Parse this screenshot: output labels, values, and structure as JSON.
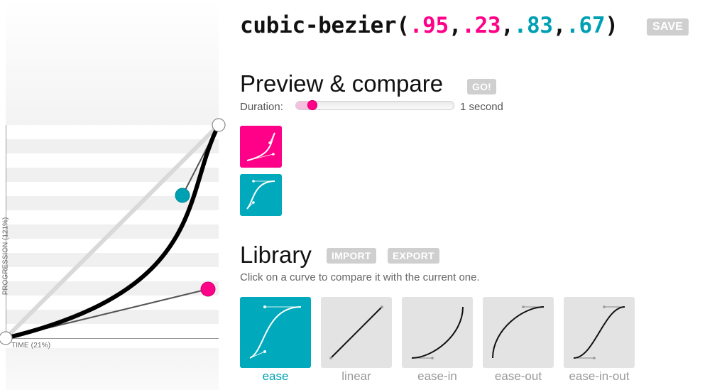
{
  "editor": {
    "x_axis_label": "TIME (21%)",
    "y_axis_label": "PROGRESSION (121%)",
    "curve_color": "#000000",
    "p1_color": "#ff0088",
    "p2_color": "#00a0b3"
  },
  "code": {
    "prefix": "cubic-bezier(",
    "p1x": ".95",
    "sep1": ",",
    "p1y": ".23",
    "sep2": ",",
    "p2x": ".83",
    "sep3": ",",
    "p2y": ".67",
    "suffix": ")",
    "save_label": "SAVE"
  },
  "preview": {
    "title": "Preview & compare",
    "go_label": "GO!",
    "duration_label": "Duration:",
    "duration_value": "1 second",
    "duration_fraction": 0.08
  },
  "library": {
    "title": "Library",
    "import_label": "IMPORT",
    "export_label": "EXPORT",
    "hint": "Click on a curve to compare it with the current one.",
    "items": [
      {
        "label": "ease",
        "selected": true
      },
      {
        "label": "linear",
        "selected": false
      },
      {
        "label": "ease-in",
        "selected": false
      },
      {
        "label": "ease-out",
        "selected": false
      },
      {
        "label": "ease-in-out",
        "selected": false
      }
    ]
  },
  "colors": {
    "pink": "#ff0088",
    "teal": "#00a0b3",
    "button_gray": "#cfcfcf"
  }
}
